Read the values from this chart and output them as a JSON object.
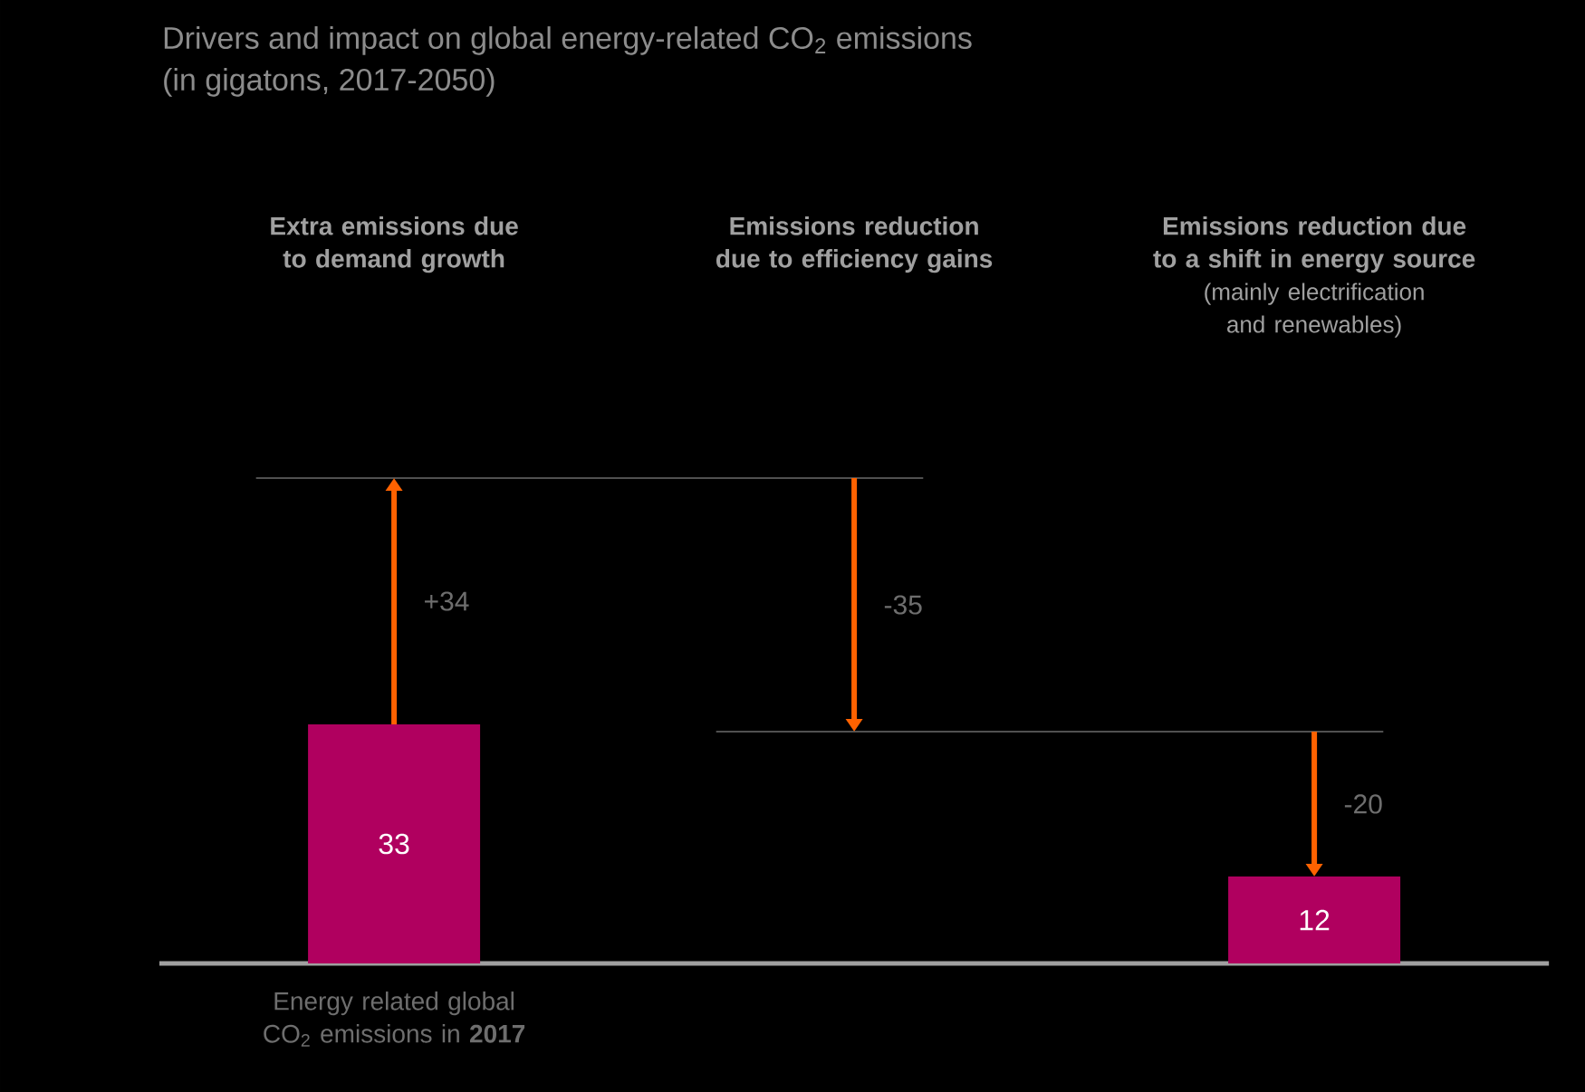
{
  "chart_data": {
    "type": "other",
    "title": "Drivers and impact on global energy-related CO$_{2}$ emissions",
    "subtitle": "(in gigatons, 2017-2050)",
    "categories": [
      "Extra emissions due to demand growth",
      "Emissions reduction due to efficiency gains",
      "Emissions reduction due to a shift in energy source"
    ],
    "annotations": [
      "Energy related global CO$_{2}$ emissions in **2017**",
      "(mainly electrification and renewables)"
    ],
    "data_labels": true,
    "series": [
      {
        "color": "#b0005f",
        "values": [
          33,
          null,
          12
        ]
      },
      {
        "color": "#ff6200",
        "values": [
          34,
          -35,
          -20
        ],
        "value_labels": [
          "+34",
          "-35",
          "-20"
        ]
      }
    ]
  }
}
